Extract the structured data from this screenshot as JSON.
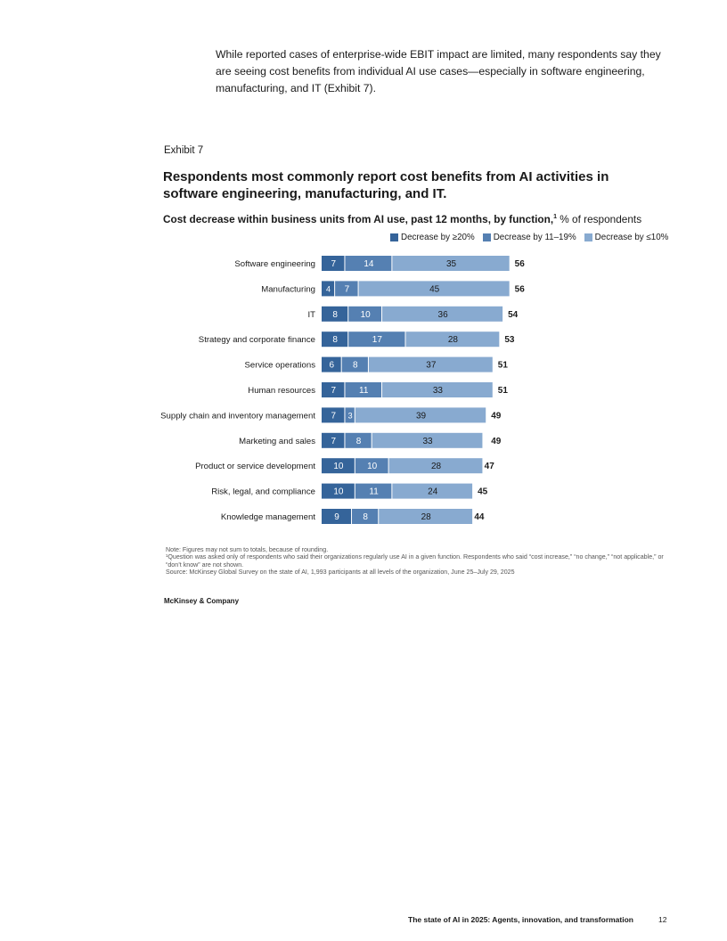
{
  "intro_text": "While reported cases of enterprise-wide EBIT impact are limited, many respondents say they are seeing cost benefits from individual AI use cases—especially in software engineering, manufacturing, and IT (Exhibit 7).",
  "exhibit_label": "Exhibit 7",
  "subtitle_bold": "Cost decrease within business units from AI use, past 12 months, by function,",
  "subtitle_sup": "1",
  "subtitle_rest": " % of respondents",
  "notes": {
    "note": "Note: Figures may not sum to totals, because of rounding.",
    "footnote": "¹Question was asked only of respondents who said their organizations regularly use AI in a given function. Respondents who said “cost increase,” “no change,” “not applicable,” or “don’t know” are not shown.",
    "source": "Source: McKinsey Global Survey on the state of AI, 1,993 participants at all levels of the organization, June 25–July 29, 2025"
  },
  "brand": "McKinsey & Company",
  "footer": {
    "title": "The state of AI in 2025: Agents, innovation, and transformation",
    "page_number": "12"
  },
  "colors": {
    "dark": "#35649a",
    "mid": "#5580b2",
    "light": "#88aad0"
  },
  "chart_data": {
    "type": "bar",
    "orientation": "horizontal",
    "stacked": true,
    "title": "Respondents most commonly report cost benefits from AI activities in software engineering, manufacturing, and IT.",
    "categories": [
      "Software engineering",
      "Manufacturing",
      "IT",
      "Strategy and corporate finance",
      "Service operations",
      "Human resources",
      "Supply chain and inventory management",
      "Marketing and sales",
      "Product or service development",
      "Risk, legal, and compliance",
      "Knowledge management"
    ],
    "series": [
      {
        "name": "Decrease by ≥20%",
        "values": [
          7,
          4,
          8,
          8,
          6,
          7,
          7,
          7,
          10,
          10,
          9
        ]
      },
      {
        "name": "Decrease by 11–19%",
        "values": [
          14,
          7,
          10,
          17,
          8,
          11,
          3,
          8,
          10,
          11,
          8
        ]
      },
      {
        "name": "Decrease by ≤10%",
        "values": [
          35,
          45,
          36,
          28,
          37,
          33,
          39,
          33,
          28,
          24,
          28
        ]
      }
    ],
    "totals": [
      56,
      56,
      54,
      53,
      51,
      51,
      49,
      49,
      47,
      45,
      44
    ],
    "legend_position": "top-right",
    "grid": false
  }
}
